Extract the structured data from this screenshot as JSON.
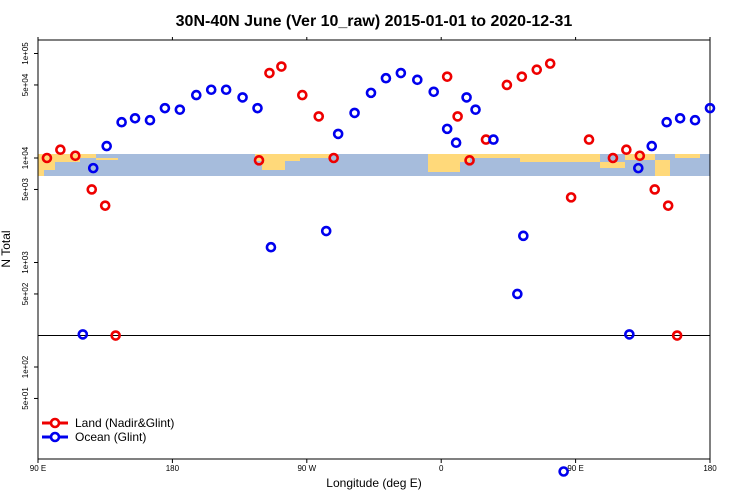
{
  "chart_data": {
    "type": "scatter",
    "title": "30N-40N June (Ver 10_raw)   2015-01-01 to 2020-12-31",
    "xlabel": "Longitude (deg E)",
    "ylabel": "N Total",
    "x_ticks": [
      {
        "value": 90,
        "label": "90 E"
      },
      {
        "value": 180,
        "label": "180"
      },
      {
        "value": 270,
        "label": "90 W"
      },
      {
        "value": 360,
        "label": "0"
      },
      {
        "value": 450,
        "label": "90 E"
      },
      {
        "value": 540,
        "label": "180"
      }
    ],
    "xlim": [
      90,
      540
    ],
    "y_scale": "log",
    "ylim": [
      2,
      100000
    ],
    "y_ticks": [
      {
        "value": 100000,
        "label": "1e+05"
      },
      {
        "value": 50000,
        "label": "5e+04"
      },
      {
        "value": 10000,
        "label": "1e+04"
      },
      {
        "value": 5000,
        "label": "5e+03"
      },
      {
        "value": 1000,
        "label": "1e+03"
      },
      {
        "value": 500,
        "label": "5e+02"
      },
      {
        "value": 100,
        "label": "1e+02"
      },
      {
        "value": 50,
        "label": "5e+01"
      }
    ],
    "reference_line": 200,
    "land_color": "#ffd97a",
    "ocean_color": "#a6bcdc",
    "series": [
      {
        "name": "Land (Nadir&Glint)",
        "color": "#ee0000",
        "points": [
          {
            "x": 96,
            "y": 10000
          },
          {
            "x": 105,
            "y": 12000
          },
          {
            "x": 115,
            "y": 10500
          },
          {
            "x": 126,
            "y": 5000
          },
          {
            "x": 135,
            "y": 3500
          },
          {
            "x": 142,
            "y": 200
          },
          {
            "x": 238,
            "y": 9500
          },
          {
            "x": 245,
            "y": 65000
          },
          {
            "x": 253,
            "y": 75000
          },
          {
            "x": 267,
            "y": 40000
          },
          {
            "x": 278,
            "y": 25000
          },
          {
            "x": 288,
            "y": 10000
          },
          {
            "x": 364,
            "y": 60000
          },
          {
            "x": 371,
            "y": 25000
          },
          {
            "x": 379,
            "y": 9500
          },
          {
            "x": 390,
            "y": 15000
          },
          {
            "x": 404,
            "y": 50000
          },
          {
            "x": 414,
            "y": 60000
          },
          {
            "x": 424,
            "y": 70000
          },
          {
            "x": 433,
            "y": 80000
          },
          {
            "x": 447,
            "y": 4200
          },
          {
            "x": 459,
            "y": 15000
          },
          {
            "x": 475,
            "y": 10000
          },
          {
            "x": 484,
            "y": 12000
          },
          {
            "x": 493,
            "y": 10500
          },
          {
            "x": 503,
            "y": 5000
          },
          {
            "x": 512,
            "y": 3500
          },
          {
            "x": 518,
            "y": 200
          }
        ]
      },
      {
        "name": "Ocean (Glint)",
        "color": "#0000ee",
        "points": [
          {
            "x": 120,
            "y": 205
          },
          {
            "x": 127,
            "y": 8000
          },
          {
            "x": 136,
            "y": 13000
          },
          {
            "x": 146,
            "y": 22000
          },
          {
            "x": 155,
            "y": 24000
          },
          {
            "x": 165,
            "y": 23000
          },
          {
            "x": 175,
            "y": 30000
          },
          {
            "x": 185,
            "y": 29000
          },
          {
            "x": 196,
            "y": 40000
          },
          {
            "x": 206,
            "y": 45000
          },
          {
            "x": 216,
            "y": 45000
          },
          {
            "x": 227,
            "y": 38000
          },
          {
            "x": 237,
            "y": 30000
          },
          {
            "x": 246,
            "y": 1400
          },
          {
            "x": 283,
            "y": 2000
          },
          {
            "x": 291,
            "y": 17000
          },
          {
            "x": 302,
            "y": 27000
          },
          {
            "x": 313,
            "y": 42000
          },
          {
            "x": 323,
            "y": 58000
          },
          {
            "x": 333,
            "y": 65000
          },
          {
            "x": 344,
            "y": 56000
          },
          {
            "x": 355,
            "y": 43000
          },
          {
            "x": 364,
            "y": 19000
          },
          {
            "x": 370,
            "y": 14000
          },
          {
            "x": 377,
            "y": 38000
          },
          {
            "x": 383,
            "y": 29000
          },
          {
            "x": 395,
            "y": 15000
          },
          {
            "x": 411,
            "y": 500
          },
          {
            "x": 415,
            "y": 1800
          },
          {
            "x": 442,
            "y": 10
          },
          {
            "x": 486,
            "y": 205
          },
          {
            "x": 492,
            "y": 8000
          },
          {
            "x": 501,
            "y": 13000
          },
          {
            "x": 511,
            "y": 22000
          },
          {
            "x": 520,
            "y": 24000
          },
          {
            "x": 530,
            "y": 23000
          },
          {
            "x": 540,
            "y": 30000
          }
        ]
      }
    ],
    "legend_position": "bottom-left"
  }
}
